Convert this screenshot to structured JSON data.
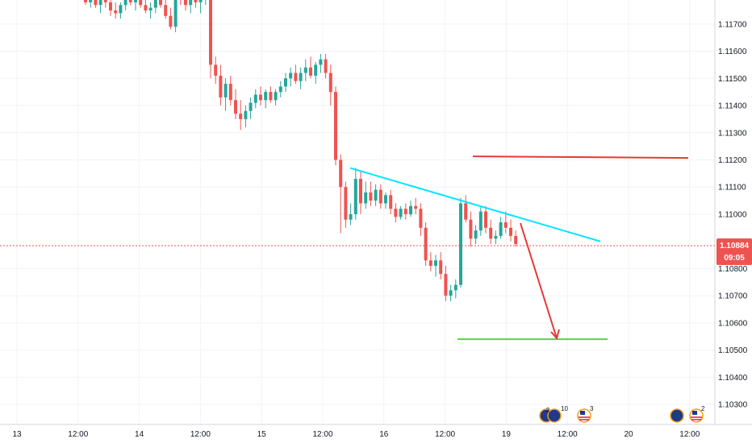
{
  "chart_data": {
    "type": "candlestick",
    "y_ticks": [
      "1.11700",
      "1.11600",
      "1.11500",
      "1.11400",
      "1.11300",
      "1.11200",
      "1.11100",
      "1.11000",
      "1.10800",
      "1.10700",
      "1.10600",
      "1.10500",
      "1.10400",
      "1.10300"
    ],
    "y_range": [
      1.1022,
      1.1183
    ],
    "x_ticks": [
      "13",
      "12:00",
      "14",
      "12:00",
      "15",
      "12:00",
      "16",
      "12:00",
      "19",
      "12:00",
      "20",
      "12:00"
    ],
    "current_price": "1.10884",
    "countdown": "09:05",
    "colors": {
      "up": "#26a69a",
      "down": "#ef5350",
      "trendline": "#00e5ff",
      "resistance": "#e53935",
      "target": "#4cdc3a",
      "arrow": "#e53935",
      "price_line": "#ef5350"
    },
    "candles": [
      [
        1.1181,
        1.1183,
        1.1177,
        1.1178
      ],
      [
        1.1178,
        1.1183,
        1.1176,
        1.1181
      ],
      [
        1.1181,
        1.1183,
        1.1176,
        1.1177
      ],
      [
        1.1177,
        1.118,
        1.1174,
        1.1179
      ],
      [
        1.1179,
        1.1183,
        1.1176,
        1.1178
      ],
      [
        1.1178,
        1.118,
        1.1173,
        1.1175
      ],
      [
        1.1175,
        1.1178,
        1.1172,
        1.1174
      ],
      [
        1.1174,
        1.1178,
        1.1172,
        1.1177
      ],
      [
        1.1177,
        1.1181,
        1.1175,
        1.118
      ],
      [
        1.118,
        1.1183,
        1.1177,
        1.1178
      ],
      [
        1.1178,
        1.1181,
        1.1175,
        1.1179
      ],
      [
        1.1179,
        1.1183,
        1.1176,
        1.1177
      ],
      [
        1.1177,
        1.118,
        1.1174,
        1.1175
      ],
      [
        1.1175,
        1.1178,
        1.1172,
        1.1176
      ],
      [
        1.1176,
        1.1181,
        1.1174,
        1.118
      ],
      [
        1.118,
        1.1183,
        1.1176,
        1.1177
      ],
      [
        1.1177,
        1.118,
        1.1172,
        1.1173
      ],
      [
        1.1173,
        1.1176,
        1.1168,
        1.1169
      ],
      [
        1.1169,
        1.1183,
        1.1167,
        1.1181
      ],
      [
        1.1181,
        1.1183,
        1.1177,
        1.1179
      ],
      [
        1.1179,
        1.1183,
        1.1175,
        1.1177
      ],
      [
        1.1177,
        1.1183,
        1.1174,
        1.1181
      ],
      [
        1.1181,
        1.1183,
        1.1176,
        1.1178
      ],
      [
        1.1178,
        1.1181,
        1.1174,
        1.118
      ],
      [
        1.118,
        1.1183,
        1.1177,
        1.1182
      ],
      [
        1.1182,
        1.1183,
        1.115,
        1.1155
      ],
      [
        1.1155,
        1.1158,
        1.1148,
        1.1151
      ],
      [
        1.1151,
        1.1155,
        1.114,
        1.1143
      ],
      [
        1.1143,
        1.115,
        1.1138,
        1.1148
      ],
      [
        1.1148,
        1.1151,
        1.114,
        1.1142
      ],
      [
        1.1142,
        1.1146,
        1.1135,
        1.1137
      ],
      [
        1.1137,
        1.1142,
        1.1131,
        1.1135
      ],
      [
        1.1135,
        1.114,
        1.1132,
        1.1138
      ],
      [
        1.1138,
        1.1143,
        1.1135,
        1.1141
      ],
      [
        1.1141,
        1.1146,
        1.1139,
        1.1144
      ],
      [
        1.1144,
        1.1147,
        1.114,
        1.1142
      ],
      [
        1.1142,
        1.1146,
        1.1139,
        1.1145
      ],
      [
        1.1145,
        1.1147,
        1.1141,
        1.1142
      ],
      [
        1.1142,
        1.1146,
        1.114,
        1.1145
      ],
      [
        1.1145,
        1.1149,
        1.1143,
        1.1147
      ],
      [
        1.1147,
        1.1152,
        1.1145,
        1.115
      ],
      [
        1.115,
        1.1154,
        1.1147,
        1.1152
      ],
      [
        1.1152,
        1.1155,
        1.1148,
        1.1149
      ],
      [
        1.1149,
        1.1154,
        1.1146,
        1.1152
      ],
      [
        1.1152,
        1.1157,
        1.1149,
        1.1154
      ],
      [
        1.1154,
        1.1158,
        1.115,
        1.1151
      ],
      [
        1.1151,
        1.1156,
        1.1148,
        1.1155
      ],
      [
        1.1155,
        1.1159,
        1.1152,
        1.1157
      ],
      [
        1.1157,
        1.1159,
        1.115,
        1.1152
      ],
      [
        1.1152,
        1.1155,
        1.114,
        1.1145
      ],
      [
        1.1145,
        1.1147,
        1.1118,
        1.112
      ],
      [
        1.112,
        1.1122,
        1.1093,
        1.111
      ],
      [
        1.111,
        1.1112,
        1.1095,
        1.1098
      ],
      [
        1.1098,
        1.1104,
        1.1096,
        1.11
      ],
      [
        1.11,
        1.1117,
        1.1098,
        1.1113
      ],
      [
        1.1113,
        1.1116,
        1.11,
        1.1104
      ],
      [
        1.1104,
        1.1112,
        1.1102,
        1.1108
      ],
      [
        1.1108,
        1.1112,
        1.1103,
        1.1105
      ],
      [
        1.1105,
        1.1111,
        1.1103,
        1.1109
      ],
      [
        1.1109,
        1.1111,
        1.1102,
        1.1104
      ],
      [
        1.1104,
        1.1108,
        1.1102,
        1.1107
      ],
      [
        1.1107,
        1.1109,
        1.11,
        1.1102
      ],
      [
        1.1102,
        1.1104,
        1.1097,
        1.1099
      ],
      [
        1.1099,
        1.1103,
        1.1098,
        1.1102
      ],
      [
        1.1102,
        1.1104,
        1.1098,
        1.11
      ],
      [
        1.11,
        1.1105,
        1.1099,
        1.1103
      ],
      [
        1.1103,
        1.1106,
        1.11,
        1.1102
      ],
      [
        1.1102,
        1.1104,
        1.1092,
        1.1095
      ],
      [
        1.1095,
        1.1097,
        1.1081,
        1.1083
      ],
      [
        1.1083,
        1.1086,
        1.1079,
        1.1081
      ],
      [
        1.1081,
        1.1085,
        1.1077,
        1.1083
      ],
      [
        1.1083,
        1.1086,
        1.1076,
        1.1078
      ],
      [
        1.1078,
        1.1081,
        1.1068,
        1.107
      ],
      [
        1.107,
        1.1074,
        1.1068,
        1.1072
      ],
      [
        1.1072,
        1.1076,
        1.1069,
        1.1074
      ],
      [
        1.1074,
        1.1106,
        1.1073,
        1.1104
      ],
      [
        1.1104,
        1.1107,
        1.1097,
        1.1098
      ],
      [
        1.1098,
        1.1101,
        1.1088,
        1.1091
      ],
      [
        1.1091,
        1.1096,
        1.1089,
        1.1094
      ],
      [
        1.1094,
        1.1103,
        1.1092,
        1.1101
      ],
      [
        1.1101,
        1.1103,
        1.1093,
        1.1095
      ],
      [
        1.1095,
        1.1098,
        1.1089,
        1.1091
      ],
      [
        1.1091,
        1.1094,
        1.1089,
        1.1092
      ],
      [
        1.1092,
        1.1099,
        1.1091,
        1.1097
      ],
      [
        1.1097,
        1.1101,
        1.1093,
        1.1095
      ],
      [
        1.1095,
        1.1098,
        1.109,
        1.1092
      ],
      [
        1.1092,
        1.1094,
        1.1088,
        1.1089
      ]
    ],
    "drawings": {
      "trendline": {
        "from": [
          1.1117,
          0
        ],
        "to": [
          1.109,
          1
        ]
      },
      "resistance": {
        "price": 1.1121
      },
      "target": {
        "price": 1.1054
      }
    }
  },
  "event_markers": {
    "group1_count": "2",
    "group1_extra": "10",
    "group2_count": "3",
    "group3_count": "2"
  }
}
